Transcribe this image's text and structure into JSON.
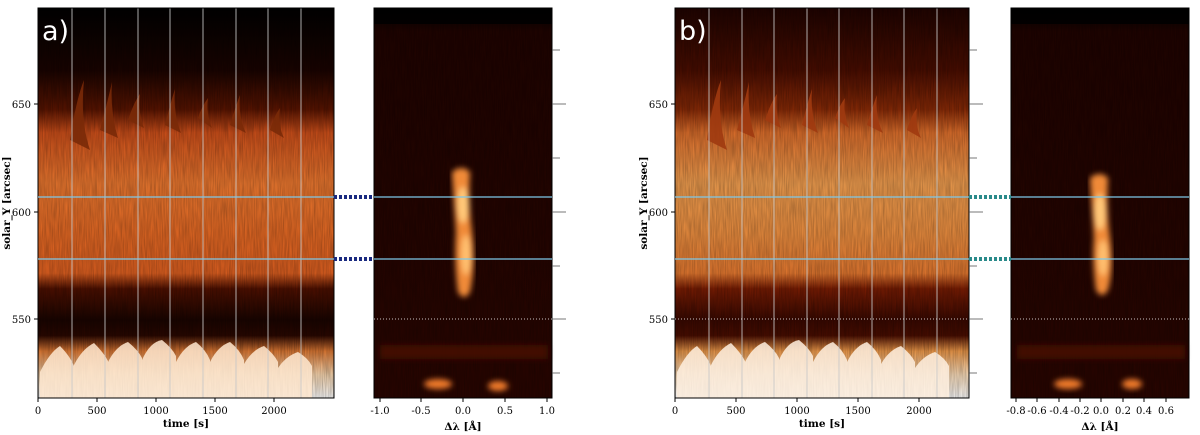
{
  "panels": [
    {
      "letter": "a)",
      "left_xticks": [
        "0",
        "500",
        "1000",
        "1500",
        "2000"
      ],
      "left_xlabel": "time [s]",
      "ylabel": "solar_Y [arcsec]",
      "yticks": [
        "550",
        "600",
        "650"
      ],
      "right_xticks": [
        "-1.0",
        "-0.5",
        "0.0",
        "0.5",
        "1.0"
      ],
      "right_xlabel": "Δλ [Å]",
      "connector_color": "#1a2a80"
    },
    {
      "letter": "b)",
      "left_xticks": [
        "0",
        "500",
        "1000",
        "1500",
        "2000"
      ],
      "left_xlabel": "time [s]",
      "ylabel": "solar_Y [arcsec]",
      "yticks": [
        "550",
        "600",
        "650"
      ],
      "right_xticks": [
        "-0.8",
        "-0.6",
        "-0.4",
        "-0.2",
        "0.0",
        "0.2",
        "0.4",
        "0.6"
      ],
      "right_xlabel": "Δλ [Å]",
      "connector_color": "#2a8a8a"
    }
  ],
  "colors": {
    "cyan_line": "#7ec8e8",
    "dotted_line": "#ffffff",
    "slit_line": "#c8c8c8"
  }
}
